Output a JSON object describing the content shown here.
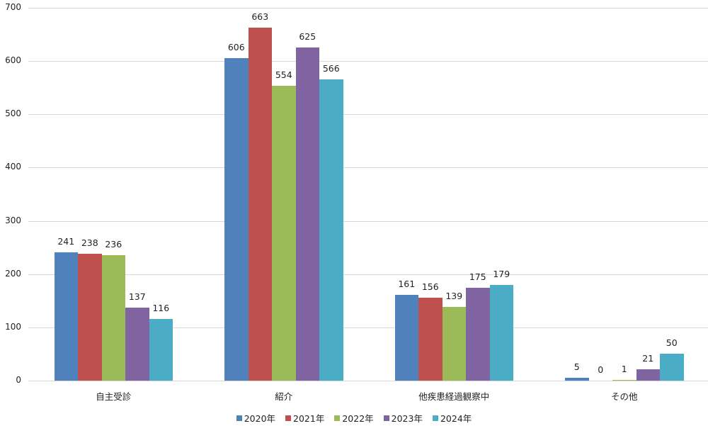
{
  "chart_data": {
    "type": "bar",
    "title": "",
    "xlabel": "",
    "ylabel": "",
    "ylim": [
      0,
      700
    ],
    "yticks": [
      0,
      100,
      200,
      300,
      400,
      500,
      600,
      700
    ],
    "grid": true,
    "legend_position": "bottom",
    "categories": [
      "自主受診",
      "紹介",
      "他疾患経過観察中",
      "その他"
    ],
    "series": [
      {
        "name": "2020年",
        "color": "#4F81BD",
        "values": [
          241,
          606,
          161,
          5
        ]
      },
      {
        "name": "2021年",
        "color": "#C0504D",
        "values": [
          238,
          663,
          156,
          0
        ]
      },
      {
        "name": "2022年",
        "color": "#9BBB59",
        "values": [
          236,
          554,
          139,
          1
        ]
      },
      {
        "name": "2023年",
        "color": "#8064A2",
        "values": [
          137,
          625,
          175,
          21
        ]
      },
      {
        "name": "2024年",
        "color": "#4BACC6",
        "values": [
          116,
          566,
          179,
          50
        ]
      }
    ],
    "data_labels": true
  }
}
